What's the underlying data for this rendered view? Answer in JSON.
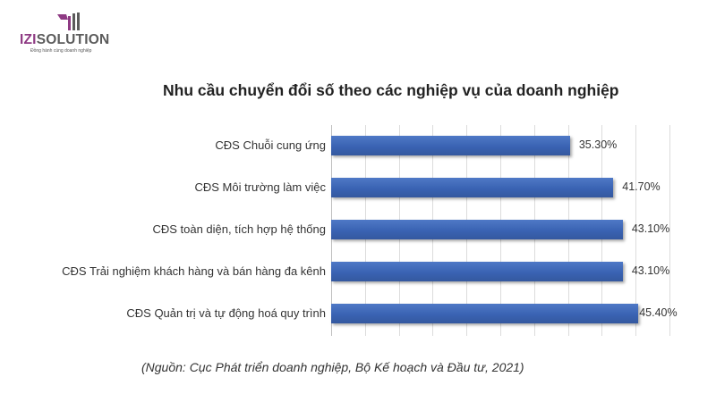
{
  "brand": {
    "name_part1": "IZI",
    "name_part2": "SOLUTION",
    "tagline": "Đồng hành cùng doanh nghiệp",
    "accent_color": "#8e3a83"
  },
  "source_note": "(Nguồn: Cục Phát triển doanh nghiệp, Bộ Kế hoạch và Đầu tư, 2021)",
  "chart_data": {
    "type": "bar",
    "orientation": "horizontal",
    "title": "Nhu cầu chuyển đổi số theo các nghiệp vụ của doanh nghiệp",
    "categories": [
      "CĐS Chuỗi cung ứng",
      "CĐS Môi trường làm việc",
      "CĐS toàn diện, tích hợp hệ thống",
      "CĐS Trải nghiệm khách hàng và bán hàng đa kênh",
      "CĐS Quản trị và tự động hoá quy trình"
    ],
    "values": [
      35.3,
      41.7,
      43.1,
      43.1,
      45.4
    ],
    "value_labels": [
      "35.30%",
      "41.70%",
      "43.10%",
      "43.10%",
      "45.40%"
    ],
    "xlabel": "",
    "ylabel": "",
    "xlim": [
      0,
      50
    ],
    "grid_step": 5,
    "grid": true,
    "legend": false,
    "bar_color": "#4472c4"
  }
}
